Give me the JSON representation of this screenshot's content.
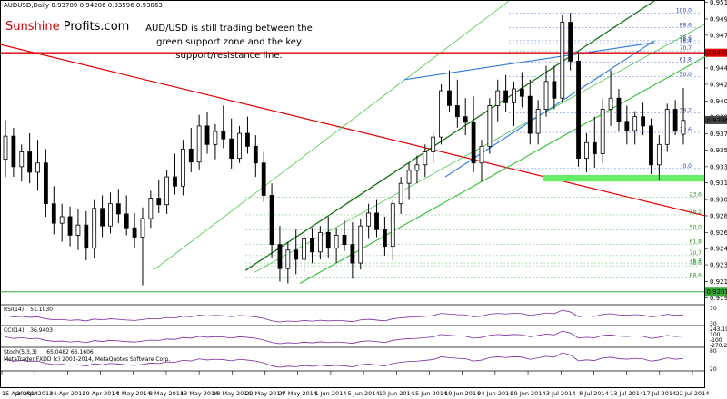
{
  "symbol_line": "AUDUSD,Daily  0.93709 0.94206 0.93596 0.93863",
  "brand": {
    "part1": "Sunshine ",
    "part2": "Profits.com"
  },
  "annotation": "AUD/USD is still trading between the green support zone and the key support/resistance line.",
  "colors": {
    "up_candle": "#ffffff",
    "down_candle": "#000000",
    "resistance_line": "#e00000",
    "channel_green_dark": "#107010",
    "channel_green_light": "#30c030",
    "blue_channel": "#2a7ae0",
    "support_zone": "#66ee66",
    "indicator_line": "#7a2aa0"
  },
  "chart_data": {
    "type": "candlestick",
    "symbol": "AUDUSD",
    "timeframe": "Daily",
    "last_ohlc": {
      "open": 0.93709,
      "high": 0.94206,
      "low": 0.93596,
      "close": 0.93863
    },
    "ylim": [
      0.9188,
      0.9515
    ],
    "price_ticks": [
      "0.95135",
      "0.94955",
      "0.94780",
      "0.94605",
      "0.94425",
      "0.94250",
      "0.94070",
      "0.93895",
      "0.93715",
      "0.93540",
      "0.93360",
      "0.93185",
      "0.93005",
      "0.92830",
      "0.92650",
      "0.92475",
      "0.92300",
      "0.92120",
      "0.91945"
    ],
    "date_ticks": [
      "15 Apr 2014",
      "20 Apr 2014",
      "24 Apr 2014",
      "29 Apr 2014",
      "4 May 2014",
      "8 May 2014",
      "13 May 2014",
      "18 May 2014",
      "22 May 2014",
      "27 May 2014",
      "1 Jun 2014",
      "5 Jun 2014",
      "10 Jun 2014",
      "15 Jun 2014",
      "19 Jun 2014",
      "24 Jun 2014",
      "29 Jun 2014",
      "3 Jul 2014",
      "8 Jul 2014",
      "13 Jul 2014",
      "17 Jul 2014",
      "22 Jul 2014"
    ],
    "price_badges": [
      {
        "label": "0.94590",
        "value": 0.9459,
        "color": "#e00000"
      },
      {
        "label": "0.93863",
        "value": 0.93863,
        "color": "#444444"
      },
      {
        "label": "0.92010",
        "value": 0.9201,
        "color": "#33aa33"
      }
    ],
    "key_levels": {
      "red_horizontal": 0.9459,
      "green_support_zone": [
        0.932,
        0.9327
      ],
      "green_bottom_line": 0.9201
    },
    "fib_upper": [
      {
        "label": "100.0",
        "value": 0.9502
      },
      {
        "label": "88.6",
        "value": 0.9486
      },
      {
        "label": "78.6",
        "value": 0.9472
      },
      {
        "label": "76.4",
        "value": 0.9469
      },
      {
        "label": "70.7",
        "value": 0.9461
      },
      {
        "label": "61.8",
        "value": 0.9449
      },
      {
        "label": "50.0",
        "value": 0.9433
      },
      {
        "label": "38.2",
        "value": 0.9394
      },
      {
        "label": "23.6",
        "value": 0.9373
      },
      {
        "label": "0.0",
        "value": 0.9334
      }
    ],
    "fib_lower": [
      {
        "label": "23.6",
        "value": 0.9303
      },
      {
        "label": "38.2",
        "value": 0.9284
      },
      {
        "label": "50.0",
        "value": 0.9268
      },
      {
        "label": "61.8",
        "value": 0.9252
      },
      {
        "label": "70.7",
        "value": 0.924
      },
      {
        "label": "76.4",
        "value": 0.9232
      },
      {
        "label": "78.6",
        "value": 0.9229
      },
      {
        "label": "88.6",
        "value": 0.9216
      }
    ],
    "candles": [
      [
        0.9344,
        0.9386,
        0.9325,
        0.9369
      ],
      [
        0.9369,
        0.9378,
        0.9325,
        0.9336
      ],
      [
        0.9336,
        0.936,
        0.932,
        0.9352
      ],
      [
        0.9352,
        0.9372,
        0.9318,
        0.933
      ],
      [
        0.933,
        0.9365,
        0.931,
        0.934
      ],
      [
        0.934,
        0.9355,
        0.9282,
        0.9296
      ],
      [
        0.9296,
        0.9315,
        0.9263,
        0.9275
      ],
      [
        0.9275,
        0.9296,
        0.9255,
        0.9282
      ],
      [
        0.9282,
        0.9293,
        0.925,
        0.9262
      ],
      [
        0.9262,
        0.929,
        0.9246,
        0.9273
      ],
      [
        0.9273,
        0.9288,
        0.9235,
        0.9248
      ],
      [
        0.9248,
        0.93,
        0.9237,
        0.9291
      ],
      [
        0.9291,
        0.9305,
        0.926,
        0.9272
      ],
      [
        0.9272,
        0.9308,
        0.9264,
        0.9296
      ],
      [
        0.9296,
        0.9312,
        0.9275,
        0.9285
      ],
      [
        0.9285,
        0.9305,
        0.9262,
        0.927
      ],
      [
        0.927,
        0.9286,
        0.9248,
        0.926
      ],
      [
        0.926,
        0.9292,
        0.9208,
        0.928
      ],
      [
        0.928,
        0.931,
        0.927,
        0.9302
      ],
      [
        0.9302,
        0.9322,
        0.9286,
        0.9295
      ],
      [
        0.9295,
        0.9332,
        0.9285,
        0.9325
      ],
      [
        0.9325,
        0.935,
        0.9306,
        0.9315
      ],
      [
        0.9315,
        0.9365,
        0.9305,
        0.9355
      ],
      [
        0.9355,
        0.9378,
        0.933,
        0.9341
      ],
      [
        0.9341,
        0.9392,
        0.9333,
        0.938
      ],
      [
        0.938,
        0.9395,
        0.935,
        0.936
      ],
      [
        0.936,
        0.9382,
        0.9344,
        0.9374
      ],
      [
        0.9374,
        0.9402,
        0.9356,
        0.9366
      ],
      [
        0.9366,
        0.9388,
        0.9334,
        0.9345
      ],
      [
        0.9345,
        0.938,
        0.934,
        0.9372
      ],
      [
        0.9372,
        0.939,
        0.935,
        0.9358
      ],
      [
        0.9358,
        0.937,
        0.9325,
        0.934
      ],
      [
        0.934,
        0.9352,
        0.9298,
        0.9305
      ],
      [
        0.9305,
        0.9318,
        0.9238,
        0.9252
      ],
      [
        0.9252,
        0.9272,
        0.9212,
        0.9226
      ],
      [
        0.9226,
        0.9255,
        0.921,
        0.9246
      ],
      [
        0.9246,
        0.9268,
        0.922,
        0.9236
      ],
      [
        0.9236,
        0.9265,
        0.9222,
        0.9258
      ],
      [
        0.9258,
        0.927,
        0.9232,
        0.9244
      ],
      [
        0.9244,
        0.9272,
        0.9236,
        0.9265
      ],
      [
        0.9265,
        0.9282,
        0.9238,
        0.9248
      ],
      [
        0.9248,
        0.927,
        0.9232,
        0.9262
      ],
      [
        0.9262,
        0.9278,
        0.9245,
        0.9252
      ],
      [
        0.9252,
        0.9276,
        0.9215,
        0.9232
      ],
      [
        0.9232,
        0.928,
        0.9225,
        0.9272
      ],
      [
        0.9272,
        0.9296,
        0.9258,
        0.9286
      ],
      [
        0.9286,
        0.93,
        0.926,
        0.9268
      ],
      [
        0.9268,
        0.9282,
        0.924,
        0.925
      ],
      [
        0.925,
        0.93,
        0.9235,
        0.9296
      ],
      [
        0.9296,
        0.9325,
        0.9285,
        0.9318
      ],
      [
        0.9318,
        0.934,
        0.93,
        0.9332
      ],
      [
        0.9332,
        0.9348,
        0.9318,
        0.9338
      ],
      [
        0.9338,
        0.936,
        0.9325,
        0.9352
      ],
      [
        0.9352,
        0.9375,
        0.934,
        0.9368
      ],
      [
        0.9368,
        0.9425,
        0.936,
        0.9418
      ],
      [
        0.9418,
        0.944,
        0.9395,
        0.9402
      ],
      [
        0.9402,
        0.943,
        0.9378,
        0.939
      ],
      [
        0.939,
        0.941,
        0.937,
        0.9384
      ],
      [
        0.9384,
        0.9412,
        0.933,
        0.934
      ],
      [
        0.934,
        0.9365,
        0.932,
        0.9358
      ],
      [
        0.9358,
        0.941,
        0.935,
        0.9402
      ],
      [
        0.9402,
        0.943,
        0.9385,
        0.9418
      ],
      [
        0.9418,
        0.9435,
        0.9395,
        0.9405
      ],
      [
        0.9405,
        0.9428,
        0.938,
        0.942
      ],
      [
        0.942,
        0.9438,
        0.94,
        0.9412
      ],
      [
        0.9412,
        0.943,
        0.936,
        0.9372
      ],
      [
        0.9372,
        0.9408,
        0.936,
        0.9398
      ],
      [
        0.9398,
        0.9445,
        0.939,
        0.9428
      ],
      [
        0.9428,
        0.9445,
        0.9398,
        0.941
      ],
      [
        0.941,
        0.95,
        0.9405,
        0.9492
      ],
      [
        0.9492,
        0.9502,
        0.944,
        0.945
      ],
      [
        0.945,
        0.946,
        0.9336,
        0.9345
      ],
      [
        0.9345,
        0.9372,
        0.933,
        0.9362
      ],
      [
        0.9362,
        0.939,
        0.9335,
        0.935
      ],
      [
        0.935,
        0.941,
        0.934,
        0.9398
      ],
      [
        0.9398,
        0.944,
        0.938,
        0.941
      ],
      [
        0.941,
        0.942,
        0.9375,
        0.9385
      ],
      [
        0.9385,
        0.9402,
        0.936,
        0.9375
      ],
      [
        0.9375,
        0.9396,
        0.936,
        0.939
      ],
      [
        0.939,
        0.9405,
        0.937,
        0.938
      ],
      [
        0.938,
        0.9388,
        0.9328,
        0.9338
      ],
      [
        0.9338,
        0.937,
        0.9322,
        0.936
      ],
      [
        0.936,
        0.9404,
        0.9352,
        0.9398
      ],
      [
        0.9398,
        0.9408,
        0.937,
        0.9375
      ],
      [
        0.9371,
        0.9421,
        0.936,
        0.9386
      ]
    ],
    "indicators": [
      {
        "name": "RSI(14)",
        "value_label": "51.1030",
        "levels": [
          "70",
          "30"
        ]
      },
      {
        "name": "CCI(14)",
        "value_label": "36.9403",
        "levels": [
          "243.1966",
          "100",
          "-100",
          "-270.2209"
        ]
      },
      {
        "name": "Stoch(5,3,3)",
        "value_label": "65.0482 66.1606",
        "levels": [
          "80",
          "20"
        ]
      }
    ],
    "copyright": "MetaTrader FXDD (c) 2001-2014, MetaQuotes Software Corp."
  }
}
